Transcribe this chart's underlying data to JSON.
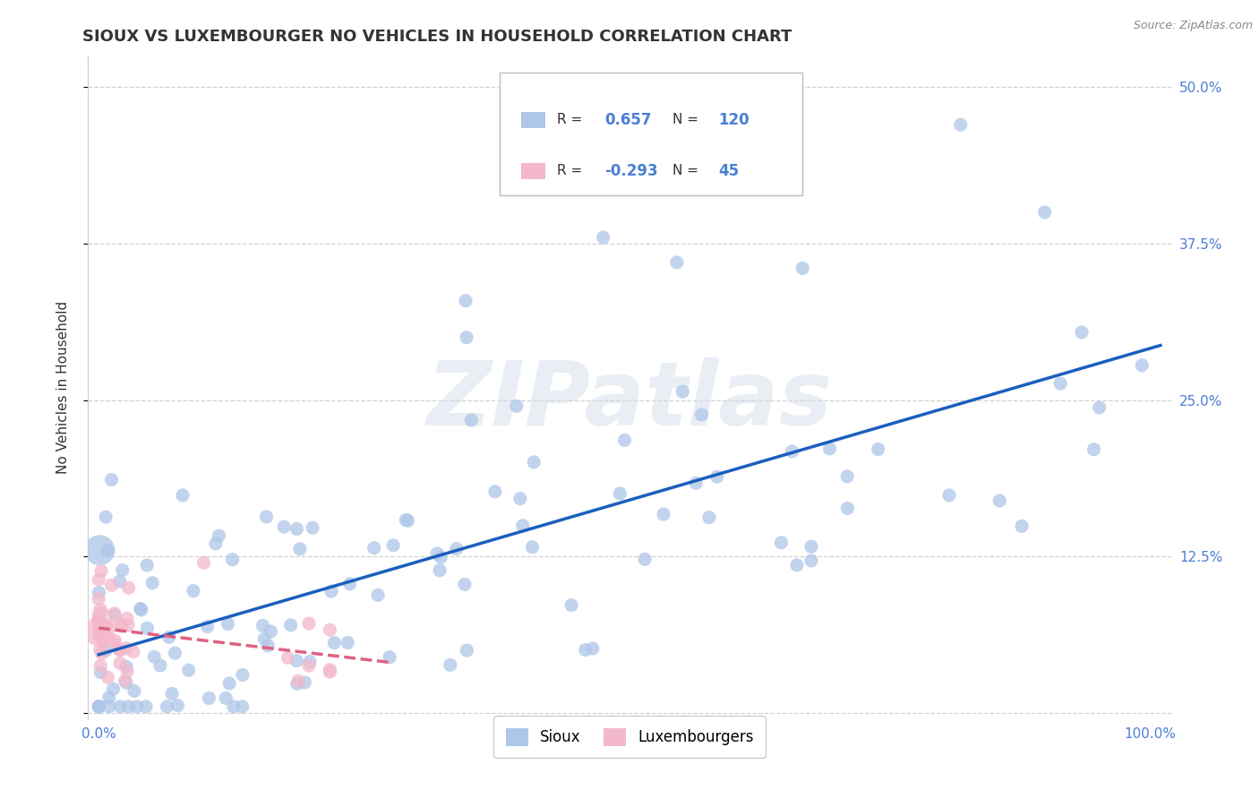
{
  "title": "SIOUX VS LUXEMBOURGER NO VEHICLES IN HOUSEHOLD CORRELATION CHART",
  "source": "Source: ZipAtlas.com",
  "ylabel": "No Vehicles in Household",
  "xlim": [
    -0.01,
    1.02
  ],
  "ylim": [
    -0.005,
    0.525
  ],
  "x_ticks": [
    0.0,
    0.25,
    0.5,
    0.75,
    1.0
  ],
  "x_tick_labels": [
    "0.0%",
    "",
    "",
    "",
    "100.0%"
  ],
  "y_ticks": [
    0.0,
    0.125,
    0.25,
    0.375,
    0.5
  ],
  "y_tick_labels_right": [
    "",
    "12.5%",
    "25.0%",
    "37.5%",
    "50.0%"
  ],
  "sioux_color": "#aec6e8",
  "sioux_edge": "#7aadd4",
  "luxembourger_color": "#f4b8cb",
  "luxembourger_edge": "#e080a0",
  "line_sioux_color": "#1a5fbd",
  "line_luxembourger_color": "#e06080",
  "R_sioux": 0.657,
  "N_sioux": 120,
  "R_luxembourger": -0.293,
  "N_luxembourger": 45,
  "watermark": "ZIPatlas",
  "background_color": "#ffffff",
  "grid_color": "#cccccc",
  "title_color": "#333333",
  "tick_color": "#4a7fd4",
  "legend_box_color": "#f5f5f5"
}
